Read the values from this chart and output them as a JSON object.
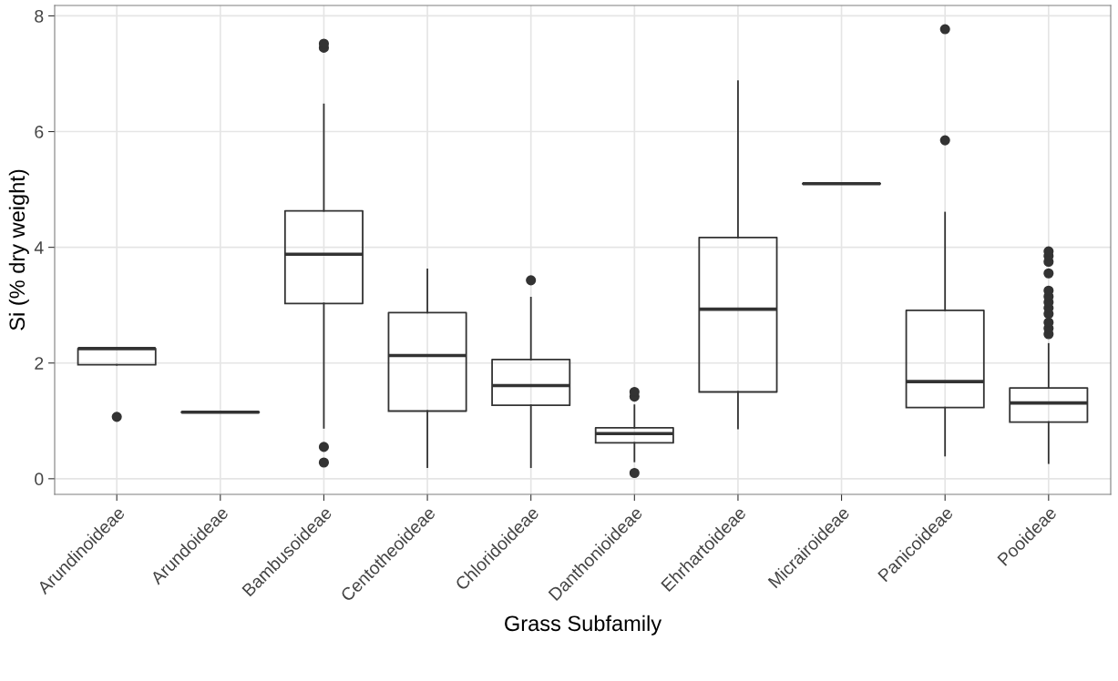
{
  "chart_data": {
    "type": "box",
    "xlabel": "Grass Subfamily",
    "ylabel": "Si (% dry weight)",
    "categories": [
      "Arundinoideae",
      "Arundoideae",
      "Bambusoideae",
      "Centotheoideae",
      "Chloridoideae",
      "Danthonioideae",
      "Ehrhartoideae",
      "Micrairoideae",
      "Panicoideae",
      "Pooideae"
    ],
    "boxes": [
      {
        "low": 1.97,
        "q1": 1.97,
        "median": 2.25,
        "q3": 2.25,
        "high": 2.25,
        "outliers": [
          1.07
        ]
      },
      {
        "low": 1.15,
        "q1": 1.15,
        "median": 1.15,
        "q3": 1.15,
        "high": 1.15
      },
      {
        "low": 0.88,
        "q1": 3.03,
        "median": 3.88,
        "q3": 4.63,
        "high": 6.47,
        "outliers": [
          7.45,
          7.52,
          0.55,
          0.28
        ]
      },
      {
        "low": 0.2,
        "q1": 1.17,
        "median": 2.13,
        "q3": 2.87,
        "high": 3.62
      },
      {
        "low": 0.2,
        "q1": 1.27,
        "median": 1.61,
        "q3": 2.06,
        "high": 3.13,
        "outliers": [
          3.43
        ]
      },
      {
        "low": 0.3,
        "q1": 0.62,
        "median": 0.78,
        "q3": 0.88,
        "high": 1.27,
        "outliers": [
          1.42,
          1.5,
          0.1
        ]
      },
      {
        "low": 0.87,
        "q1": 1.5,
        "median": 2.93,
        "q3": 4.17,
        "high": 6.87
      },
      {
        "low": 5.1,
        "q1": 5.1,
        "median": 5.1,
        "q3": 5.1,
        "high": 5.1
      },
      {
        "low": 0.4,
        "q1": 1.23,
        "median": 1.68,
        "q3": 2.91,
        "high": 4.6,
        "outliers": [
          5.85,
          7.77
        ]
      },
      {
        "low": 0.27,
        "q1": 0.98,
        "median": 1.31,
        "q3": 1.57,
        "high": 2.33,
        "outliers": [
          2.5,
          2.6,
          2.7,
          2.85,
          2.95,
          3.05,
          3.15,
          3.25,
          3.55,
          3.75,
          3.85,
          3.93
        ]
      }
    ],
    "ylim": [
      -0.27,
      8.18
    ],
    "yticks": [
      0,
      2,
      4,
      6,
      8
    ],
    "grid": true
  }
}
